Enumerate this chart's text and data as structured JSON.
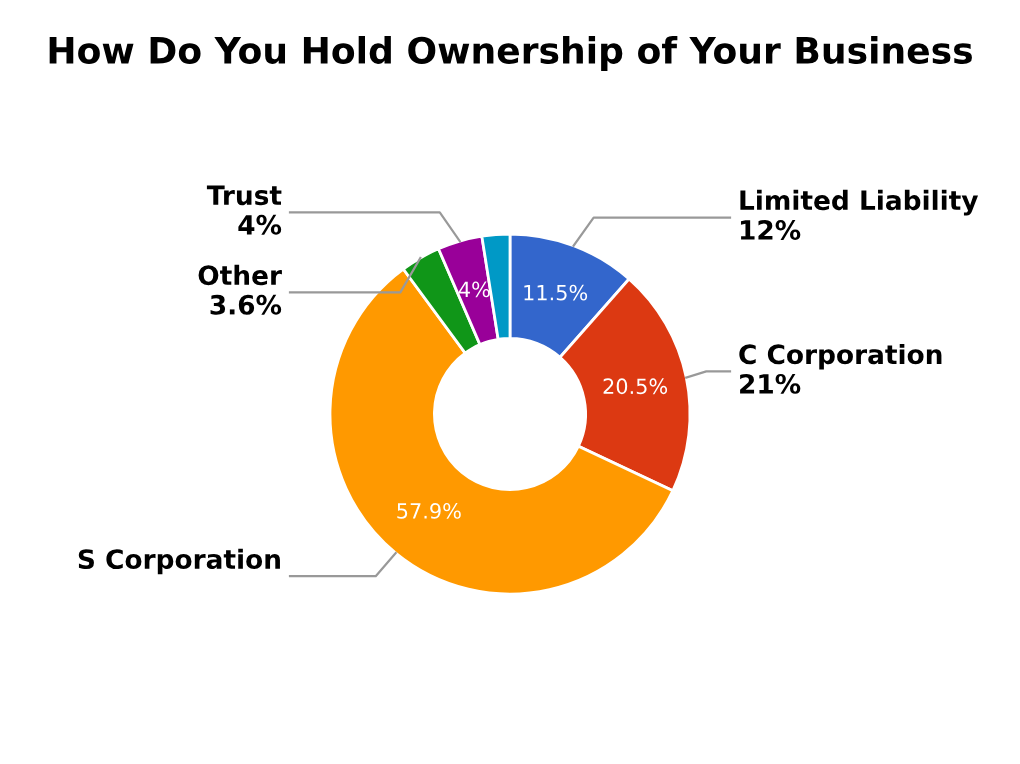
{
  "chart_data": {
    "type": "donut",
    "title": "How Do You Hold Ownership of Your Business",
    "categories": [
      "Limited Liability",
      "C Corporation",
      "S Corporation",
      "Other",
      "Trust",
      null
    ],
    "values": [
      11.5,
      20.5,
      57.9,
      3.6,
      4,
      2.5
    ],
    "colors": [
      "#3366cc",
      "#dc3912",
      "#ff9900",
      "#109618",
      "#990099",
      "#0099c6"
    ],
    "value_labels": [
      "11.5%",
      "20.5%",
      "57.9%",
      null,
      "4%",
      null
    ],
    "annotations": [
      {
        "text": "12%",
        "x": "Limited Liability"
      },
      {
        "text": "21%",
        "x": "C Corporation"
      },
      {
        "text": "4%",
        "x": "Trust"
      },
      {
        "text": "3.6%",
        "x": "Other"
      }
    ]
  }
}
